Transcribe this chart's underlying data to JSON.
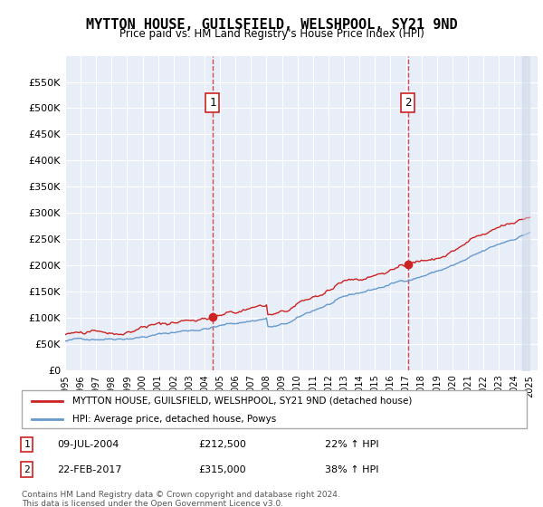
{
  "title": "MYTTON HOUSE, GUILSFIELD, WELSHPOOL, SY21 9ND",
  "subtitle": "Price paid vs. HM Land Registry's House Price Index (HPI)",
  "legend_line1": "MYTTON HOUSE, GUILSFIELD, WELSHPOOL, SY21 9ND (detached house)",
  "legend_line2": "HPI: Average price, detached house, Powys",
  "sale1_label": "1",
  "sale1_date": "09-JUL-2004",
  "sale1_price": "£212,500",
  "sale1_hpi": "22% ↑ HPI",
  "sale2_label": "2",
  "sale2_date": "22-FEB-2017",
  "sale2_price": "£315,000",
  "sale2_hpi": "38% ↑ HPI",
  "footnote": "Contains HM Land Registry data © Crown copyright and database right 2024.\nThis data is licensed under the Open Government Licence v3.0.",
  "sale1_year": 2004.52,
  "sale2_year": 2017.14,
  "ylim": [
    0,
    600000
  ],
  "yticks": [
    0,
    50000,
    100000,
    150000,
    200000,
    250000,
    300000,
    350000,
    400000,
    450000,
    500000,
    550000
  ],
  "background_color": "#e8eef8",
  "plot_bg": "#e8eef8",
  "hpi_color": "#6699cc",
  "price_color": "#cc2222",
  "hatch_color": "#d0d8e8",
  "grid_color": "#ffffff",
  "sale_marker_color": "#cc2222"
}
